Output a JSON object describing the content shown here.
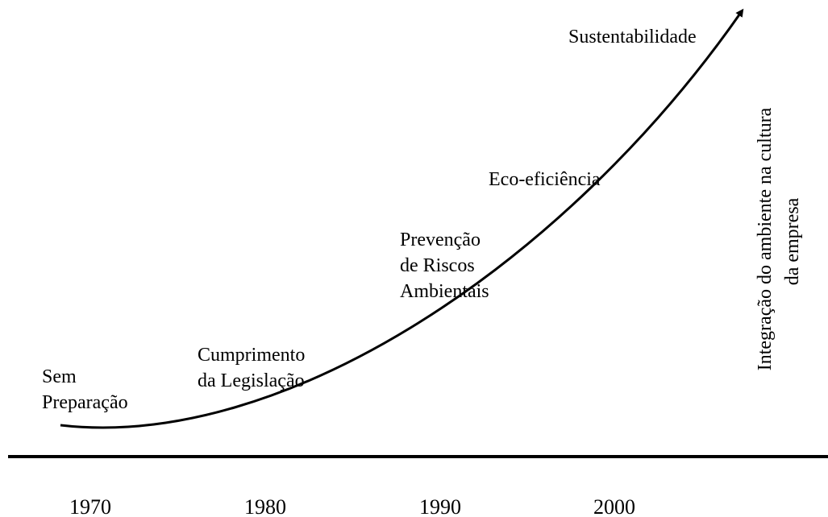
{
  "stages": [
    {
      "lines": [
        "Sem",
        "Preparação"
      ]
    },
    {
      "lines": [
        "Cumprimento",
        "da Legislação"
      ]
    },
    {
      "lines": [
        "Prevenção",
        "de Riscos",
        "Ambientais"
      ]
    },
    {
      "lines": [
        "Eco-eficiência"
      ]
    },
    {
      "lines": [
        "Sustentabilidade"
      ]
    }
  ],
  "side_label": {
    "lines": [
      "Integração do ambiente na cultura",
      "da empresa"
    ]
  },
  "years": [
    1970,
    1980,
    1990,
    2000
  ]
}
